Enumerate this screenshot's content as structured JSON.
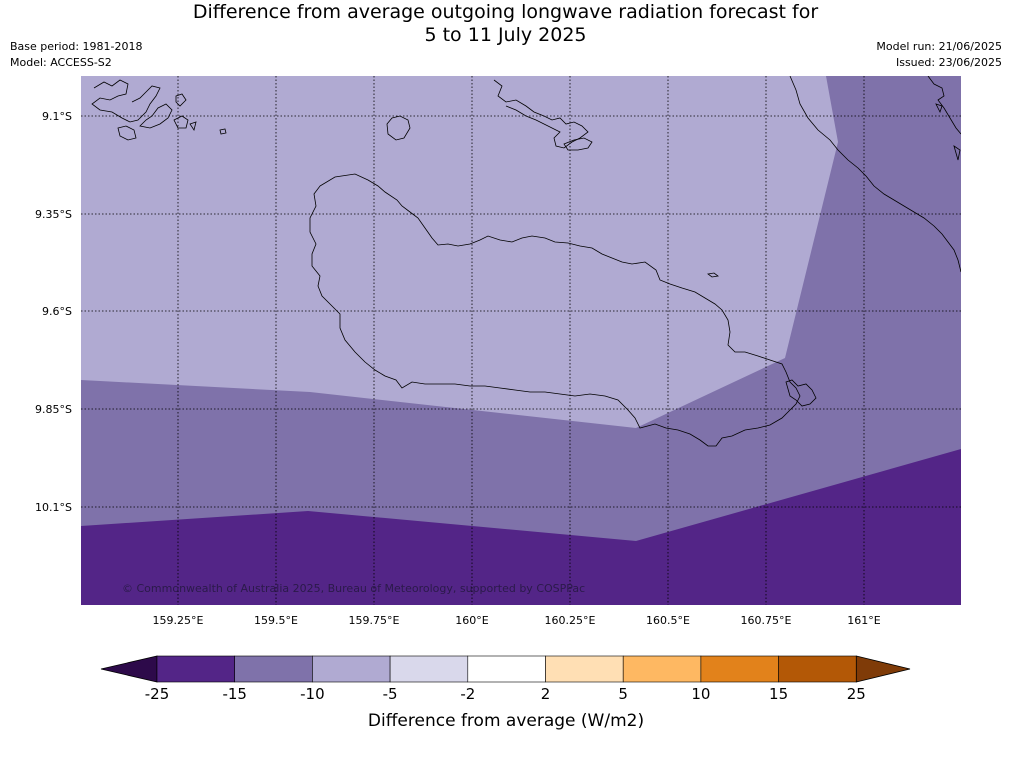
{
  "title": {
    "line1": "Difference from average outgoing longwave radiation forecast for",
    "line2": "5 to 11 July 2025"
  },
  "meta_left": {
    "base_period": "Base period: 1981-2018",
    "model": "Model: ACCESS-S2"
  },
  "meta_right": {
    "model_run": "Model run: 21/06/2025",
    "issued": "Issued: 23/06/2025"
  },
  "map": {
    "lat_labels": [
      "9.1°S",
      "9.35°S",
      "9.6°S",
      "9.85°S",
      "10.1°S"
    ],
    "lon_labels": [
      "159.25°E",
      "159.5°E",
      "159.75°E",
      "160°E",
      "160.25°E",
      "160.5°E",
      "160.75°E",
      "161°E"
    ],
    "copyright": "© Commonwealth of Australia 2025, Bureau of Meteorology, supported by COSPPac",
    "colors": {
      "band_minus5_to_minus10": "#b0aad2",
      "band_minus10_to_minus15": "#7f72aa",
      "band_minus15_to_minus25": "#532587"
    }
  },
  "colorbar": {
    "ticks": [
      "-25",
      "-15",
      "-10",
      "-5",
      "-2",
      "2",
      "5",
      "10",
      "15",
      "25"
    ],
    "colors": [
      "#2d0a4a",
      "#532587",
      "#7f72aa",
      "#b0aad2",
      "#d9d8eb",
      "#ffffff",
      "#ffdfb4",
      "#feb862",
      "#e2821b",
      "#b35806",
      "#7f3b08"
    ],
    "label": "Difference from average (W/m2)"
  }
}
